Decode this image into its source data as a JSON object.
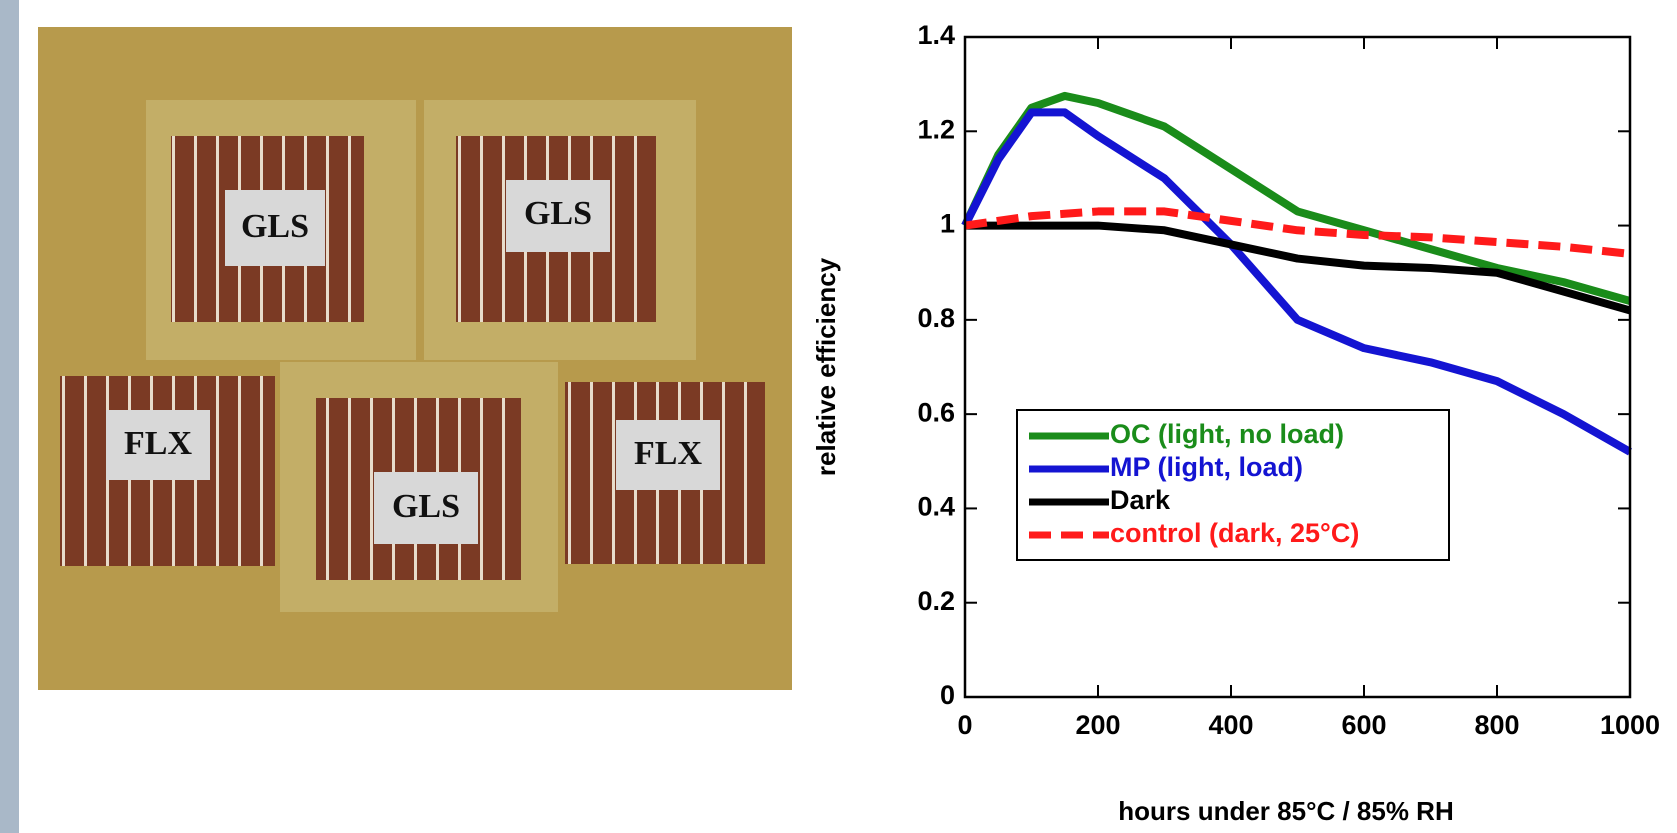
{
  "chart_data": {
    "type": "line",
    "xlabel": "hours under 85°C / 85% RH",
    "ylabel": "relative efficiency",
    "x": [
      0,
      50,
      100,
      150,
      200,
      300,
      400,
      500,
      600,
      700,
      800,
      900,
      1000
    ],
    "series": [
      {
        "name": "OC (light, no load)",
        "color": "#1a8c1a",
        "style": "solid",
        "values": [
          1.0,
          1.15,
          1.25,
          1.275,
          1.26,
          1.21,
          1.12,
          1.03,
          0.99,
          0.95,
          0.91,
          0.88,
          0.84
        ]
      },
      {
        "name": "MP (light, load)",
        "color": "#1414d2",
        "style": "solid",
        "values": [
          1.0,
          1.14,
          1.24,
          1.24,
          1.19,
          1.1,
          0.96,
          0.8,
          0.74,
          0.71,
          0.67,
          0.6,
          0.52
        ]
      },
      {
        "name": "Dark",
        "color": "#000000",
        "style": "solid",
        "values": [
          1.0,
          1.0,
          1.0,
          1.0,
          1.0,
          0.99,
          0.96,
          0.93,
          0.915,
          0.91,
          0.9,
          0.86,
          0.82
        ]
      },
      {
        "name": "control (dark, 25°C)",
        "color": "#ff1a1a",
        "style": "dashed",
        "values": [
          1.0,
          1.01,
          1.02,
          1.025,
          1.03,
          1.03,
          1.01,
          0.99,
          0.98,
          0.975,
          0.965,
          0.955,
          0.94
        ]
      }
    ],
    "xlim": [
      0,
      1000
    ],
    "xticks": [
      0,
      200,
      400,
      600,
      800,
      1000
    ],
    "ylim": [
      0,
      1.4
    ],
    "yticks": [
      0,
      0.2,
      0.4,
      0.6,
      0.8,
      1,
      1.2,
      1.4
    ],
    "grid": false,
    "legend": "center left"
  },
  "photo": {
    "labels": [
      "GLS",
      "GLS",
      "FLX",
      "GLS",
      "FLX"
    ]
  }
}
